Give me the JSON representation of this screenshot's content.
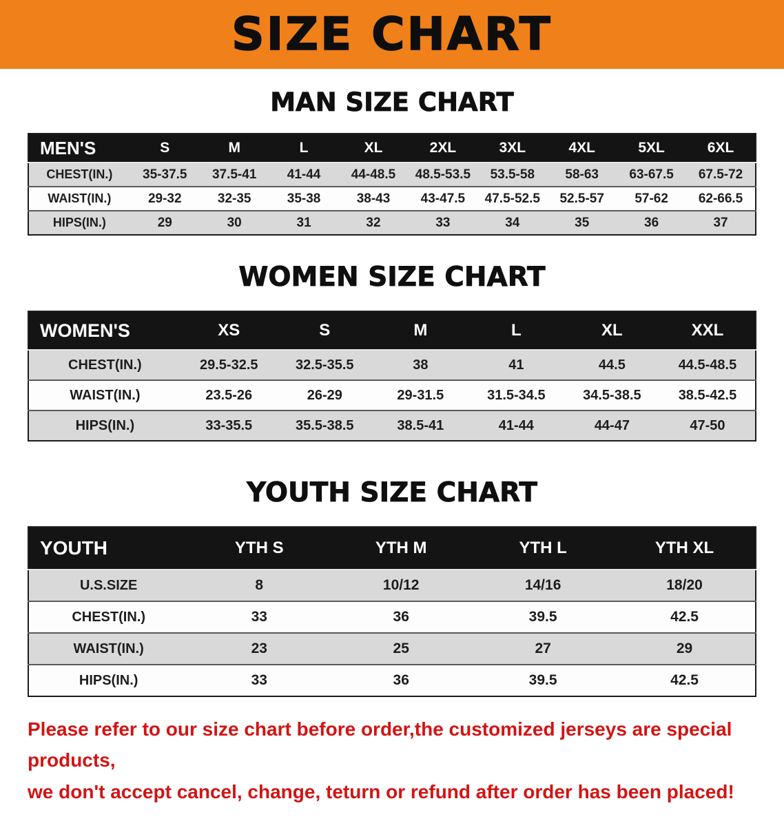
{
  "banner": {
    "title": "SIZE CHART",
    "bg_color": "#f0801a",
    "text_color": "#0e0e0e"
  },
  "sections": [
    {
      "heading": "MAN SIZE CHART",
      "table": {
        "name": "mens",
        "header_label": "MEN'S",
        "columns": [
          "S",
          "M",
          "L",
          "XL",
          "2XL",
          "3XL",
          "4XL",
          "5XL",
          "6XL"
        ],
        "rows": [
          {
            "label": "CHEST(IN.)",
            "values": [
              "35-37.5",
              "37.5-41",
              "41-44",
              "44-48.5",
              "48.5-53.5",
              "53.5-58",
              "58-63",
              "63-67.5",
              "67.5-72"
            ]
          },
          {
            "label": "WAIST(IN.)",
            "values": [
              "29-32",
              "32-35",
              "35-38",
              "38-43",
              "43-47.5",
              "47.5-52.5",
              "52.5-57",
              "57-62",
              "62-66.5"
            ]
          },
          {
            "label": "HIPS(IN.)",
            "values": [
              "29",
              "30",
              "31",
              "32",
              "33",
              "34",
              "35",
              "36",
              "37"
            ]
          }
        ]
      }
    },
    {
      "heading": "WOMEN SIZE CHART",
      "table": {
        "name": "womens",
        "header_label": "WOMEN'S",
        "columns": [
          "XS",
          "S",
          "M",
          "L",
          "XL",
          "XXL"
        ],
        "rows": [
          {
            "label": "CHEST(IN.)",
            "values": [
              "29.5-32.5",
              "32.5-35.5",
              "38",
              "41",
              "44.5",
              "44.5-48.5"
            ]
          },
          {
            "label": "WAIST(IN.)",
            "values": [
              "23.5-26",
              "26-29",
              "29-31.5",
              "31.5-34.5",
              "34.5-38.5",
              "38.5-42.5"
            ]
          },
          {
            "label": "HIPS(IN.)",
            "values": [
              "33-35.5",
              "35.5-38.5",
              "38.5-41",
              "41-44",
              "44-47",
              "47-50"
            ]
          }
        ]
      }
    },
    {
      "heading": "YOUTH SIZE CHART",
      "table": {
        "name": "youth",
        "header_label": "YOUTH",
        "columns": [
          "YTH S",
          "YTH M",
          "YTH L",
          "YTH XL"
        ],
        "rows": [
          {
            "label": "U.S.SIZE",
            "values": [
              "8",
              "10/12",
              "14/16",
              "18/20"
            ]
          },
          {
            "label": "CHEST(IN.)",
            "values": [
              "33",
              "36",
              "39.5",
              "42.5"
            ]
          },
          {
            "label": "WAIST(IN.)",
            "values": [
              "23",
              "25",
              "27",
              "29"
            ]
          },
          {
            "label": "HIPS(IN.)",
            "values": [
              "33",
              "36",
              "39.5",
              "42.5"
            ]
          }
        ]
      }
    }
  ],
  "footer": {
    "line1": "Please refer to our size chart before order,the customized jerseys are special products,",
    "line2": "we don't accept cancel, change, teturn or refund after order has been placed!",
    "text_color": "#d21414"
  }
}
